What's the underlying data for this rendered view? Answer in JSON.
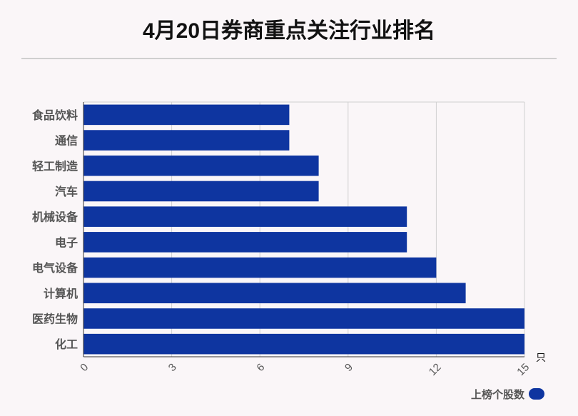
{
  "title": "4月20日券商重点关注行业排名",
  "chart_data": {
    "type": "bar",
    "orientation": "horizontal",
    "categories": [
      "食品饮料",
      "通信",
      "轻工制造",
      "汽车",
      "机械设备",
      "电子",
      "电气设备",
      "计算机",
      "医药生物",
      "化工"
    ],
    "series": [
      {
        "name": "上榜个股数",
        "values": [
          7,
          7,
          8,
          8,
          11,
          11,
          12,
          13,
          15,
          15
        ]
      }
    ],
    "xlim": [
      0,
      15
    ],
    "xticks": [
      0,
      3,
      6,
      9,
      12,
      15
    ],
    "xunit": "只",
    "grid": true,
    "legend": "bottom-right",
    "bar_color": "#0e35a0"
  }
}
